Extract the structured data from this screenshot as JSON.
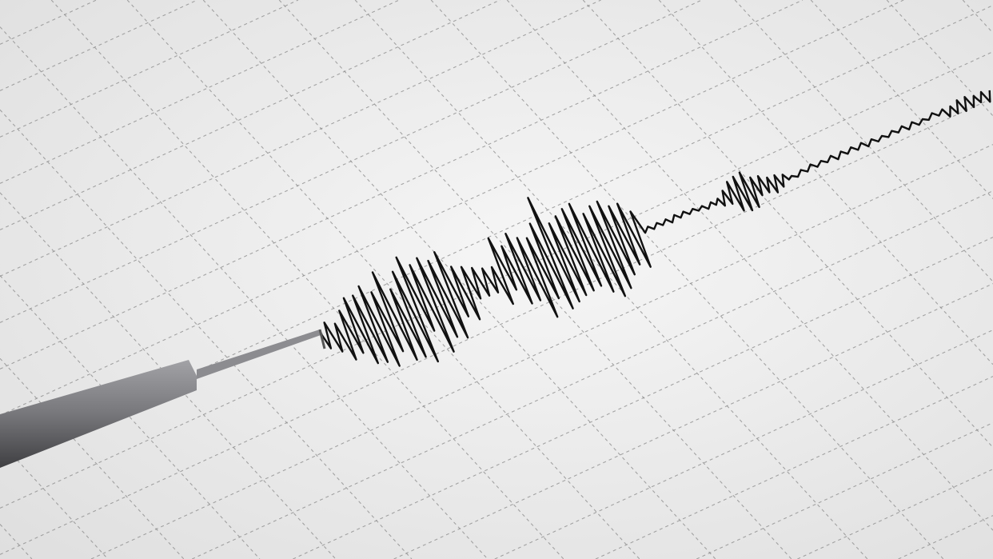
{
  "scene": {
    "subject": "seismograph",
    "colors": {
      "paper": "#f0f0f0",
      "grid": "#8a8a8a",
      "trace": "#111111",
      "stylus": "#7d7d80"
    }
  }
}
